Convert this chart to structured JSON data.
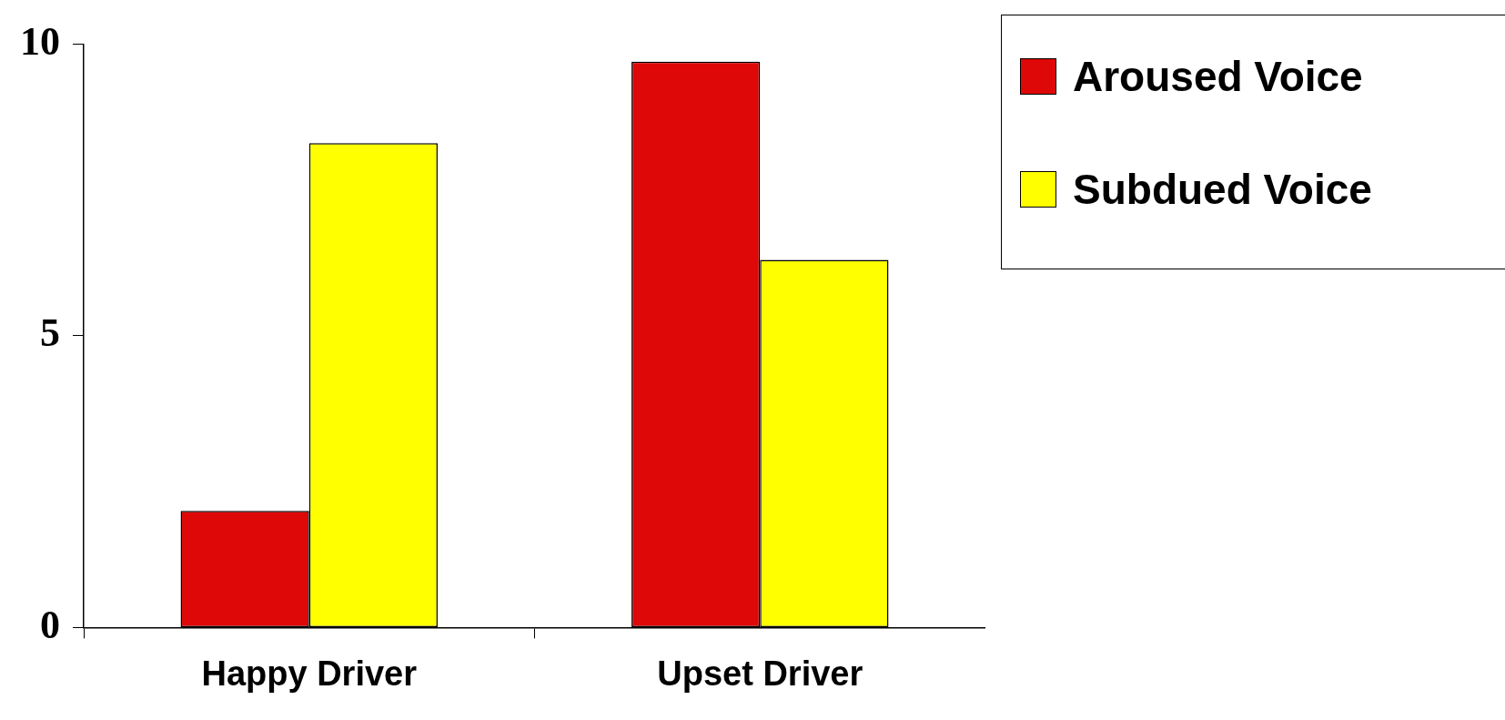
{
  "chart_data": {
    "type": "bar",
    "categories": [
      "Happy Driver",
      "Upset Driver"
    ],
    "series": [
      {
        "name": "Aroused Voice",
        "color": "#de0808",
        "values": [
          2.0,
          9.7
        ]
      },
      {
        "name": "Subdued Voice",
        "color": "#ffff00",
        "values": [
          8.3,
          6.3
        ]
      }
    ],
    "ylim": [
      0,
      10
    ],
    "yticks": [
      0,
      5,
      10
    ],
    "grid": false,
    "legend": "top right"
  }
}
